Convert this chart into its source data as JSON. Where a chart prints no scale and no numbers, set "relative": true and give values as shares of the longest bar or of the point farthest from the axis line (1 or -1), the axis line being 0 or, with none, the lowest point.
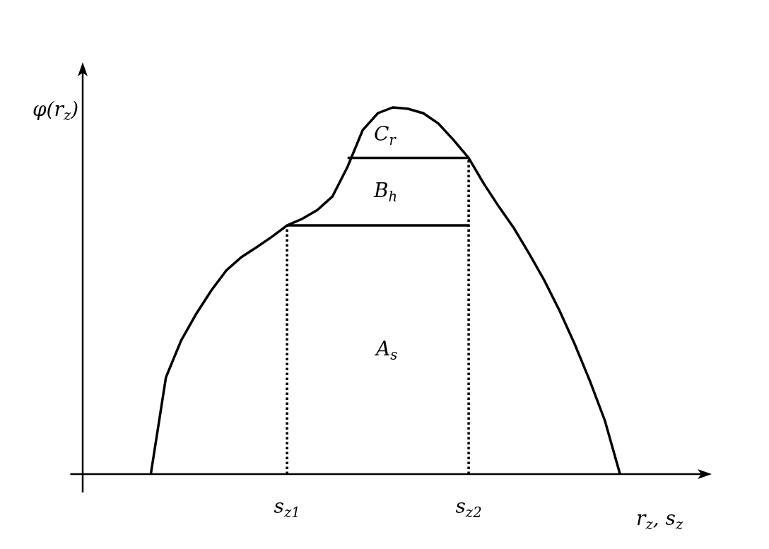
{
  "chart_data": {
    "type": "line",
    "relative": true,
    "xlabel": "r$_{z}$, s$_{z}$",
    "ylabel": "φ(r$_{z}$)",
    "categories": [
      null,
      null,
      null,
      null,
      null,
      null,
      null,
      null,
      null,
      null,
      null,
      null,
      null,
      "s$_{z1}$",
      null,
      null,
      null,
      null,
      null,
      null,
      null,
      null,
      null,
      null,
      null,
      "s$_{z2}$",
      null,
      null,
      null,
      null,
      null,
      null,
      null,
      null,
      null,
      null,
      null,
      null,
      null,
      null,
      null
    ],
    "grid": false,
    "marker": "none",
    "line_style": "solid",
    "series": [
      {
        "color": "#000000",
        "values": [
          null,
          null,
          null,
          null,
          0,
          0.264,
          0.364,
          0.437,
          0.501,
          0.556,
          0.592,
          0.619,
          0.647,
          0.678,
          0.696,
          0.72,
          0.757,
          0.838,
          0.938,
          0.984,
          1,
          0.996,
          0.984,
          0.956,
          0.911,
          0.862,
          0.792,
          0.729,
          0.67,
          0.601,
          0.528,
          0.446,
          0.355,
          0.255,
          0.146,
          0,
          null,
          null,
          null,
          null,
          null
        ]
      },
      {
        "color": "#000000",
        "values": [
          null,
          null,
          null,
          null,
          null,
          null,
          null,
          null,
          null,
          null,
          null,
          null,
          null,
          0.678,
          0.678,
          0.678,
          0.678,
          0.678,
          0.678,
          0.678,
          0.678,
          0.678,
          0.678,
          0.678,
          0.678,
          0.678,
          null,
          null,
          null,
          null,
          null,
          null,
          null,
          null,
          null,
          null,
          null,
          null,
          null,
          null,
          null
        ]
      },
      {
        "color": "#000000",
        "values": [
          null,
          null,
          null,
          null,
          null,
          null,
          null,
          null,
          null,
          null,
          null,
          null,
          null,
          null,
          null,
          null,
          null,
          0.862,
          0.862,
          0.862,
          0.862,
          0.862,
          0.862,
          0.862,
          0.862,
          0.862,
          null,
          null,
          null,
          null,
          null,
          null,
          null,
          null,
          null,
          null,
          null,
          null,
          null,
          null,
          null
        ]
      }
    ],
    "ref_lines": [
      {
        "axis": "x",
        "value": "s$_{z1}$",
        "line_style": "dotted",
        "color": "#000000"
      },
      {
        "axis": "x",
        "value": "s$_{z2}$",
        "line_style": "dotted",
        "color": "#000000"
      }
    ],
    "annotations": [
      "A$_{s}$",
      "B$_{h}$",
      "C$_{r}$"
    ]
  }
}
